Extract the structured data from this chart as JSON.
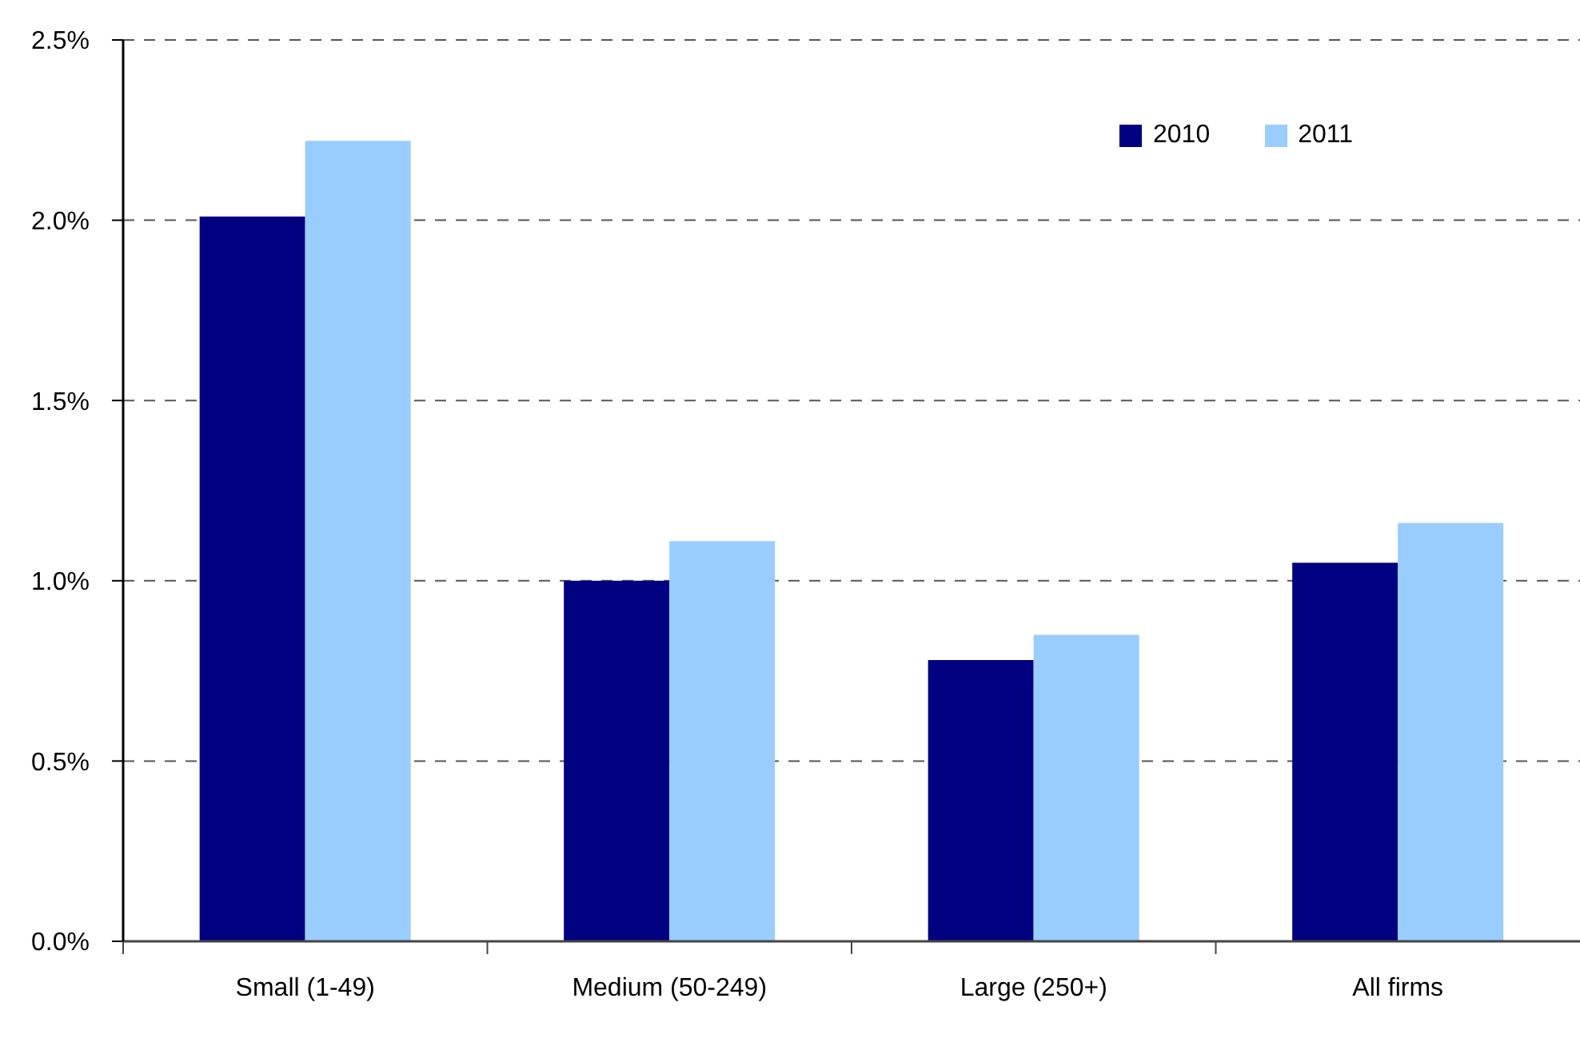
{
  "chart_data": {
    "type": "bar",
    "categories": [
      "Small (1-49)",
      "Medium (50-249)",
      "Large (250+)",
      "All firms"
    ],
    "series": [
      {
        "name": "2010",
        "color": "#000080",
        "values": [
          2.01,
          1.0,
          0.78,
          1.05
        ]
      },
      {
        "name": "2011",
        "color": "#99ccff",
        "values": [
          2.22,
          1.11,
          0.85,
          1.16
        ]
      }
    ],
    "ylim": [
      0,
      2.5
    ],
    "yticks": [
      {
        "value": 0,
        "label": "0.0%"
      },
      {
        "value": 0.5,
        "label": "0.5%"
      },
      {
        "value": 1,
        "label": "1.0%"
      },
      {
        "value": 1.5,
        "label": "1.5%"
      },
      {
        "value": 2,
        "label": "2.0%"
      },
      {
        "value": 2.5,
        "label": "2.5%"
      }
    ],
    "grid": "y",
    "legend": "top right"
  }
}
